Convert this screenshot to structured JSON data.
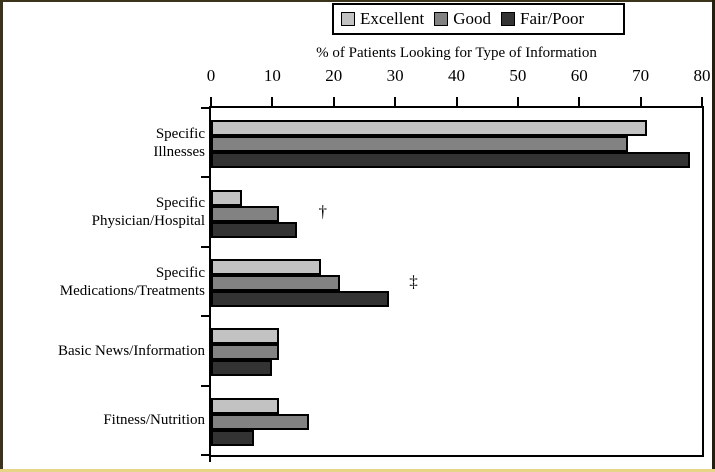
{
  "chart_data": {
    "type": "bar",
    "orientation": "horizontal",
    "xlabel": "% of Patients Looking for Type of Information",
    "xlim": [
      0,
      80
    ],
    "xticks": [
      0,
      10,
      20,
      30,
      40,
      50,
      60,
      70,
      80
    ],
    "grid": false,
    "legend_position": "top",
    "categories": [
      {
        "label": "Specific Illnesses",
        "lines": [
          "Specific",
          "Illnesses"
        ]
      },
      {
        "label": "Specific Physician/Hospital",
        "lines": [
          "Specific",
          "Physician/Hospital"
        ]
      },
      {
        "label": "Specific Medications/Treatments",
        "lines": [
          "Specific",
          "Medications/Treatments"
        ]
      },
      {
        "label": "Basic News/Information",
        "lines": [
          "Basic News/Information"
        ]
      },
      {
        "label": "Fitness/Nutrition",
        "lines": [
          "Fitness/Nutrition"
        ]
      }
    ],
    "series": [
      {
        "name": "Excellent",
        "color": "#c2c2c2",
        "values": [
          71,
          5,
          18,
          11,
          11
        ]
      },
      {
        "name": "Good",
        "color": "#828282",
        "values": [
          68,
          11,
          21,
          11,
          16
        ]
      },
      {
        "name": "Fair/Poor",
        "color": "#333333",
        "values": [
          78,
          14,
          29,
          10,
          7
        ]
      }
    ],
    "annotations": [
      {
        "text": "†",
        "x": 18.2,
        "category_index": 1
      },
      {
        "text": "‡",
        "x": 33.0,
        "category_index": 2
      }
    ]
  }
}
